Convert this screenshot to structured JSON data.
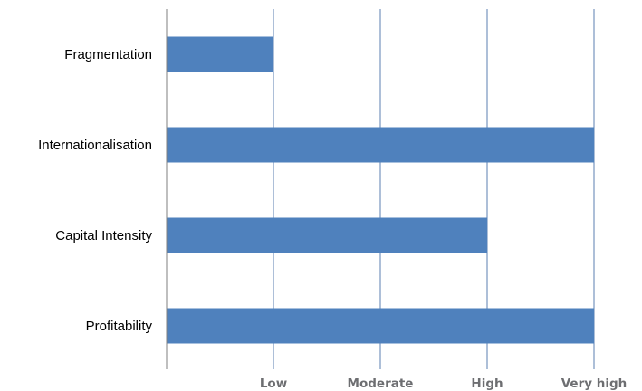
{
  "chart_data": {
    "type": "bar",
    "orientation": "horizontal",
    "categories": [
      "Fragmentation",
      "Internationalisation",
      "Capital Intensity",
      "Profitability"
    ],
    "values": [
      1,
      4,
      3,
      4
    ],
    "xlim": [
      0,
      4
    ],
    "ticks": [
      {
        "value": 1,
        "label": "Low"
      },
      {
        "value": 2,
        "label": "Moderate"
      },
      {
        "value": 3,
        "label": "High"
      },
      {
        "value": 4,
        "label": "Very high"
      }
    ],
    "title": "",
    "xlabel": "",
    "ylabel": "",
    "grid": "vertical",
    "legend": "none",
    "colors": {
      "bar": "#4f81bd",
      "grid": "#5b7fb0",
      "axis": "#7f7f7f",
      "tick_text": "#6d6e71",
      "label_text": "#000000"
    }
  }
}
